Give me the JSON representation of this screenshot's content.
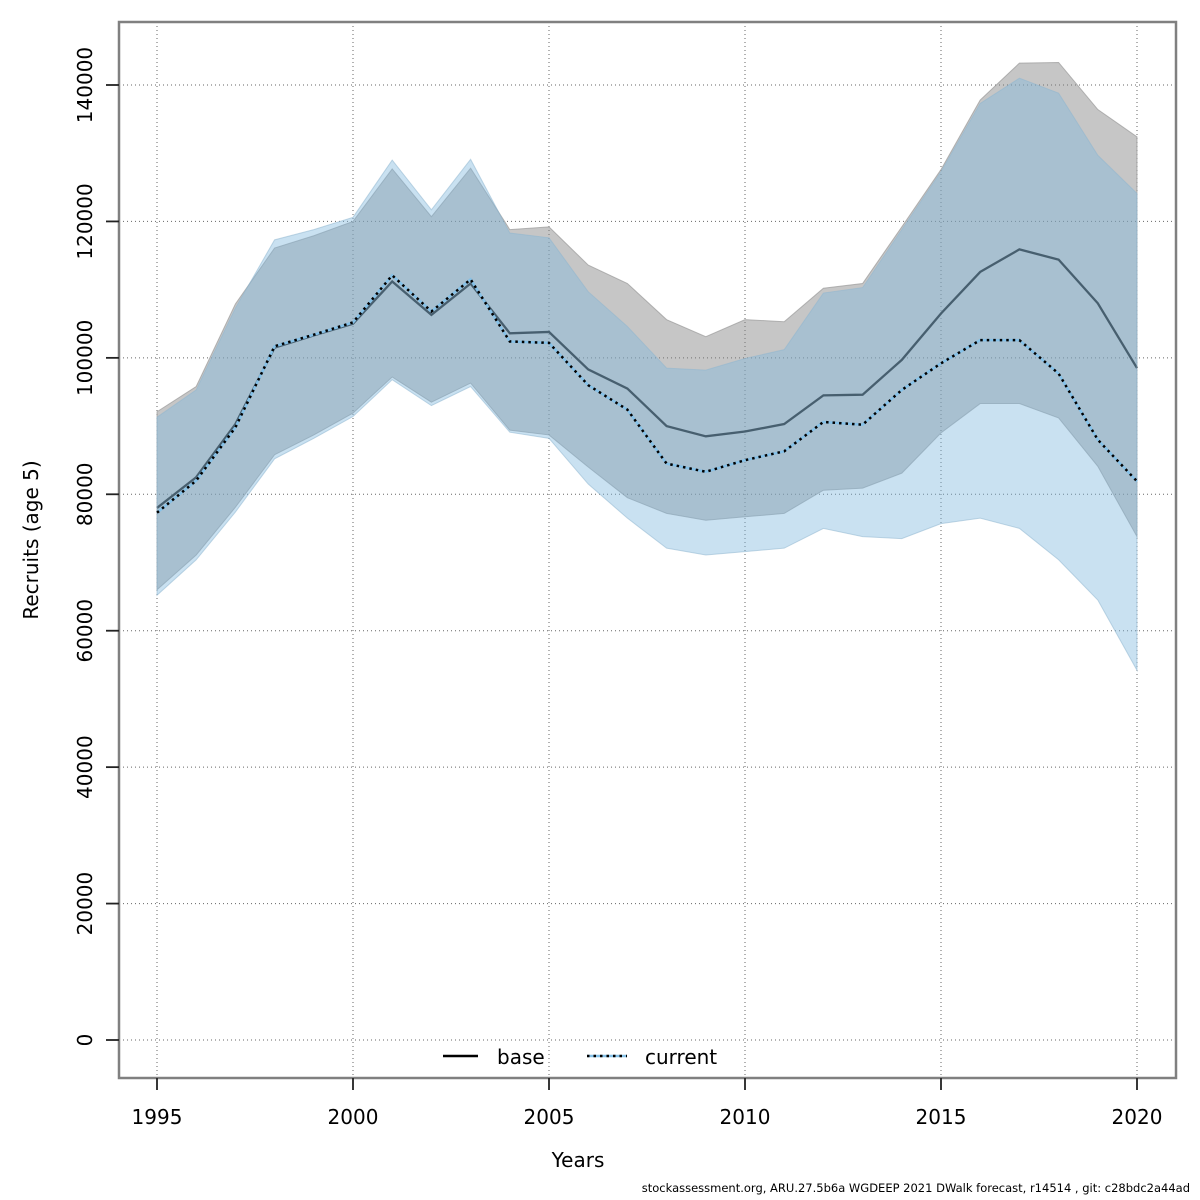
{
  "chart_data": {
    "type": "line",
    "title": "",
    "xlabel": "Years",
    "ylabel": "Recruits (age 5)",
    "xlim": [
      1995,
      2020
    ],
    "ylim": [
      0,
      148000
    ],
    "grid": true,
    "legend_position": "bottom-center",
    "x_ticks": [
      1995,
      2000,
      2005,
      2010,
      2015,
      2020
    ],
    "y_ticks": [
      0,
      20000,
      40000,
      60000,
      80000,
      100000,
      120000,
      140000
    ],
    "x": [
      1995,
      1996,
      1997,
      1998,
      1999,
      2000,
      2001,
      2002,
      2003,
      2004,
      2005,
      2006,
      2007,
      2008,
      2009,
      2010,
      2011,
      2012,
      2013,
      2014,
      2015,
      2016,
      2017,
      2018,
      2019,
      2020
    ],
    "series": [
      {
        "name": "base",
        "style": "solid",
        "color": "#000000",
        "values": [
          78000,
          82500,
          90300,
          101500,
          103300,
          105000,
          111200,
          106300,
          110900,
          103600,
          103800,
          98300,
          95500,
          90000,
          88500,
          89200,
          90300,
          94500,
          94600,
          99700,
          106500,
          112600,
          115900,
          114400,
          108000,
          98500
        ]
      },
      {
        "name": "current",
        "style": "dotted",
        "color": "#85c1e8",
        "values": [
          77300,
          82000,
          89800,
          101700,
          103400,
          105200,
          112100,
          106800,
          111500,
          102400,
          102200,
          96000,
          92400,
          84500,
          83300,
          85000,
          86300,
          90600,
          90200,
          95300,
          99200,
          102600,
          102600,
          97700,
          88000,
          81900
        ]
      }
    ],
    "bands": [
      {
        "name": "base_confidence_band",
        "color": "#808080",
        "opacity": 0.45,
        "upper": [
          92100,
          95800,
          107900,
          116100,
          117900,
          120000,
          127700,
          120700,
          127800,
          118800,
          119200,
          113600,
          110900,
          105600,
          103100,
          105600,
          105300,
          110200,
          110900,
          119200,
          127600,
          137800,
          143200,
          143300,
          136400,
          132400
        ],
        "lower": [
          66000,
          71100,
          78100,
          85800,
          88700,
          91900,
          97200,
          93500,
          96300,
          89400,
          88700,
          84000,
          79500,
          77200,
          76200,
          76700,
          77200,
          80600,
          80900,
          83100,
          89000,
          93300,
          93300,
          91200,
          84100,
          73800
        ]
      },
      {
        "name": "current_confidence_band",
        "color": "#7fb8de",
        "opacity": 0.42,
        "upper": [
          91300,
          95300,
          107300,
          117300,
          118800,
          120600,
          129000,
          121700,
          129100,
          118300,
          117600,
          109700,
          104600,
          98500,
          98200,
          99900,
          101200,
          109500,
          110300,
          118800,
          127300,
          137300,
          141000,
          138800,
          129700,
          124100
        ],
        "lower": [
          65200,
          70400,
          77400,
          85200,
          88200,
          91400,
          96800,
          93000,
          95800,
          89100,
          88200,
          81500,
          76500,
          72100,
          71100,
          71600,
          72100,
          75000,
          73800,
          73500,
          75700,
          76500,
          75000,
          70400,
          64500,
          54200
        ]
      }
    ]
  },
  "legend": {
    "base_label": "base",
    "current_label": "current"
  },
  "footer": {
    "citation": "stockassessment.org, ARU.27.5b6a WGDEEP 2021 DWalk forecast, r14514 , git: c28bdc2a44ad"
  },
  "colors": {
    "frame": "#808080",
    "grid": "#666666",
    "tick": "#222222",
    "base_line": "#111111",
    "current_line_core": "#85c1e8",
    "current_line_dots": "#000000"
  }
}
